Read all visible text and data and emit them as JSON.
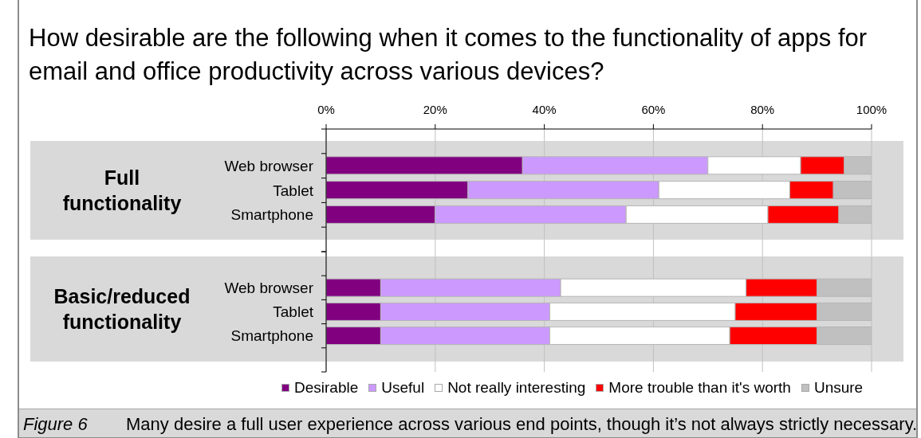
{
  "chart_data": [
    {
      "type": "bar",
      "title": "How desirable are the following when it comes to the functionality of apps for email and office productivity across various devices?",
      "ylabel": "Full functionality",
      "orientation": "horizontal",
      "stacked": true,
      "categories": [
        null,
        "Web browser",
        "Tablet",
        "Smartphone",
        null
      ],
      "series": [
        {
          "color": "#800080",
          "values": [
            null,
            36,
            26,
            20,
            null
          ]
        },
        {
          "color": "#cc99ff",
          "values": [
            null,
            34,
            35,
            35,
            null
          ]
        },
        {
          "color": "#ffffff",
          "values": [
            null,
            17,
            24,
            26,
            null
          ]
        },
        {
          "color": "#ff0000",
          "values": [
            null,
            8,
            8,
            13,
            null
          ]
        },
        {
          "color": "#c0c0c0",
          "values": [
            null,
            5,
            7,
            6,
            null
          ]
        }
      ],
      "xlim": [
        0,
        100
      ],
      "xticks": [
        {
          "value": 0,
          "label": "0%"
        },
        {
          "value": 20,
          "label": "20%"
        },
        {
          "value": 40,
          "label": "40%"
        },
        {
          "value": 60,
          "label": "60%"
        },
        {
          "value": 80,
          "label": "80%"
        },
        {
          "value": 100,
          "label": "100%"
        }
      ],
      "grid": "x"
    },
    {
      "type": "bar",
      "ylabel": "Basic/reduced functionality",
      "orientation": "horizontal",
      "stacked": true,
      "categories": [
        null,
        "Web browser",
        "Tablet",
        "Smartphone",
        null
      ],
      "series": [
        {
          "name": "Desirable",
          "color": "#800080",
          "values": [
            null,
            10,
            10,
            10,
            null
          ]
        },
        {
          "name": "Useful",
          "color": "#cc99ff",
          "values": [
            null,
            33,
            31,
            31,
            null
          ]
        },
        {
          "name": "Not really interesting",
          "color": "#ffffff",
          "values": [
            null,
            34,
            34,
            33,
            null
          ]
        },
        {
          "name": "More trouble than it's worth",
          "color": "#ff0000",
          "values": [
            null,
            13,
            15,
            16,
            null
          ]
        },
        {
          "name": "Unsure",
          "color": "#c0c0c0",
          "values": [
            null,
            10,
            10,
            10,
            null
          ]
        }
      ],
      "xlim": [
        0,
        100
      ],
      "xticks": [
        0,
        20,
        40,
        60,
        80,
        100
      ],
      "tick_labels": "y",
      "grid": "x",
      "legend": "bottom",
      "annotations": [
        "Figure 6",
        "Many desire a full user experience across various end points, though it’s not always strictly necessary."
      ]
    }
  ]
}
